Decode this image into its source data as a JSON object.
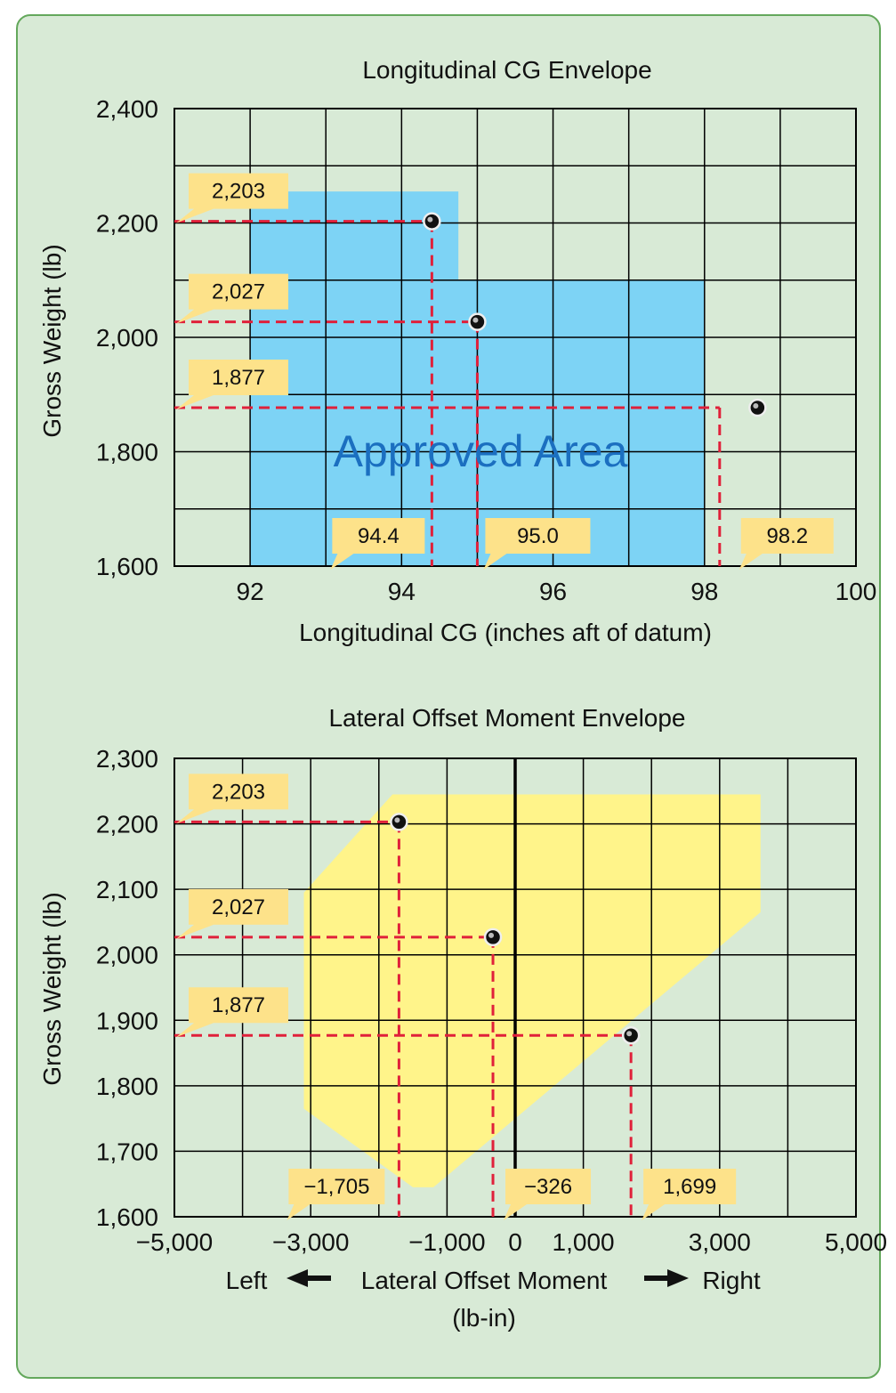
{
  "chart_data": [
    {
      "type": "scatter",
      "title": "Longitudinal CG Envelope",
      "xlabel": "Longitudinal CG (inches aft of datum)",
      "ylabel": "Gross Weight (lb)",
      "xlim": [
        91,
        100
      ],
      "ylim": [
        1600,
        2400
      ],
      "x_ticks": [
        "92",
        "94",
        "96",
        "98",
        "100"
      ],
      "y_ticks": [
        "1,600",
        "1,800",
        "2,000",
        "2,200",
        "2,400"
      ],
      "grid": true,
      "envelope": {
        "label": "Approved Area",
        "color": "#7dd3f5",
        "polygon": [
          [
            92,
            1600
          ],
          [
            92,
            2255
          ],
          [
            94.75,
            2255
          ],
          [
            94.75,
            2100
          ],
          [
            98,
            2100
          ],
          [
            98,
            1600
          ]
        ]
      },
      "points": [
        {
          "x": 94.4,
          "y": 2203,
          "x_label": "94.4",
          "y_label": "2,203"
        },
        {
          "x": 95.0,
          "y": 2027,
          "x_label": "95.0",
          "y_label": "2,027"
        },
        {
          "x": 98.2,
          "y": 1877,
          "x_label": "98.2",
          "y_label": "1,877"
        }
      ]
    },
    {
      "type": "scatter",
      "title": "Lateral Offset Moment Envelope",
      "xlabel": "Lateral Offset Moment",
      "xlabel_left": "Left",
      "xlabel_right": "Right",
      "xlabel_units": "(lb-in)",
      "ylabel": "Gross Weight (lb)",
      "xlim": [
        -5000,
        5000
      ],
      "ylim": [
        1600,
        2300
      ],
      "x_ticks": [
        "−5,000",
        "−3,000",
        "−1,000",
        "0",
        "1,000",
        "3,000",
        "5,000"
      ],
      "x_tick_values": [
        -5000,
        -3000,
        -1000,
        0,
        1000,
        3000,
        5000
      ],
      "y_ticks": [
        "1,600",
        "1,700",
        "1,800",
        "1,900",
        "2,000",
        "2,100",
        "2,200",
        "2,300"
      ],
      "grid": true,
      "envelope": {
        "color": "#fff48a",
        "polygon": [
          [
            -3100,
            1765
          ],
          [
            -3100,
            2095
          ],
          [
            -1800,
            2245
          ],
          [
            3600,
            2245
          ],
          [
            3600,
            2065
          ],
          [
            -1200,
            1645
          ],
          [
            -1500,
            1645
          ]
        ]
      },
      "points": [
        {
          "x": -1705,
          "y": 2203,
          "x_label": "−1,705",
          "y_label": "2,203"
        },
        {
          "x": -326,
          "y": 2027,
          "x_label": "−326",
          "y_label": "2,027"
        },
        {
          "x": 1699,
          "y": 1877,
          "x_label": "1,699",
          "y_label": "1,877"
        }
      ]
    }
  ],
  "colors": {
    "background": "#d8ead6",
    "border": "#64a85c",
    "callout": "#fde28a",
    "dashed_line": "#e0203a",
    "grid": "#000000"
  }
}
